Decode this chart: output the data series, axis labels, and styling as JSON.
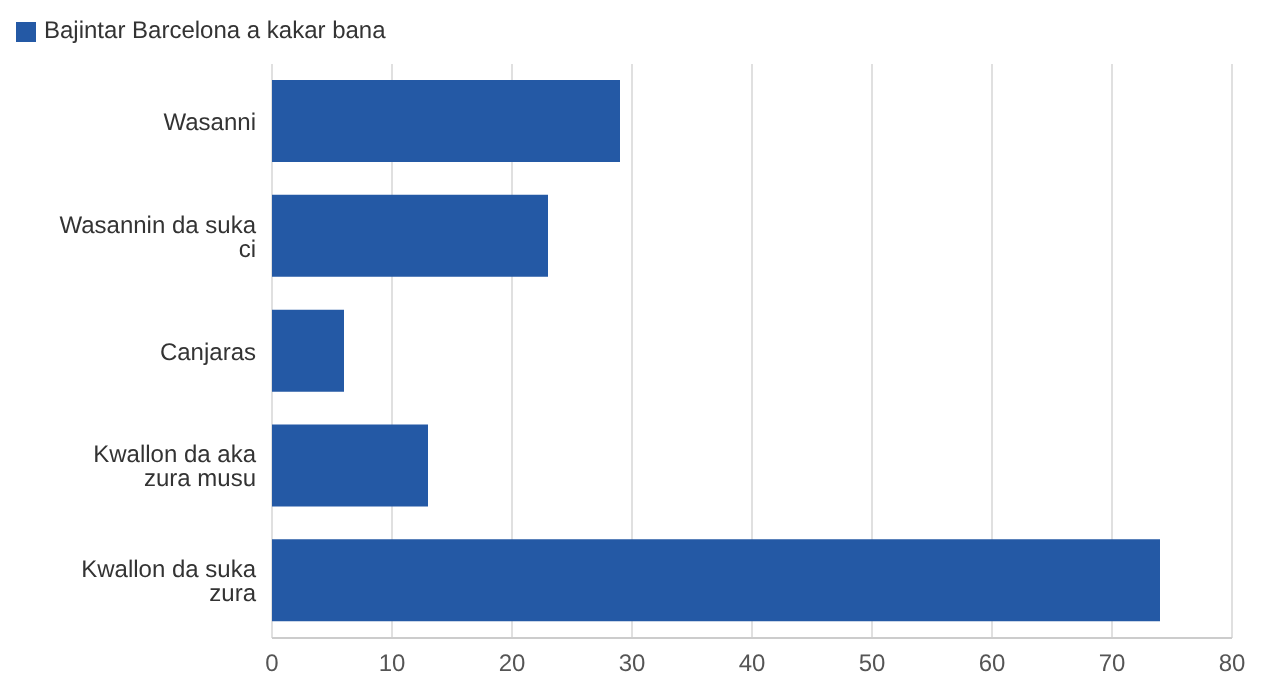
{
  "chart_data": {
    "type": "bar",
    "orientation": "horizontal",
    "categories": [
      "Wasanni",
      "Wasannin da suka ci",
      "Canjaras",
      "Kwallon da aka zura musu",
      "Kwallon da suka zura"
    ],
    "series": [
      {
        "name": "Bajintar Barcelona a kakar bana",
        "color": "#2459a5",
        "values": [
          29,
          23,
          6,
          13,
          74
        ]
      }
    ],
    "xlim": [
      0,
      80
    ],
    "xticks": [
      0,
      10,
      20,
      30,
      40,
      50,
      60,
      70,
      80
    ],
    "grid": "x",
    "legend": "top left"
  }
}
